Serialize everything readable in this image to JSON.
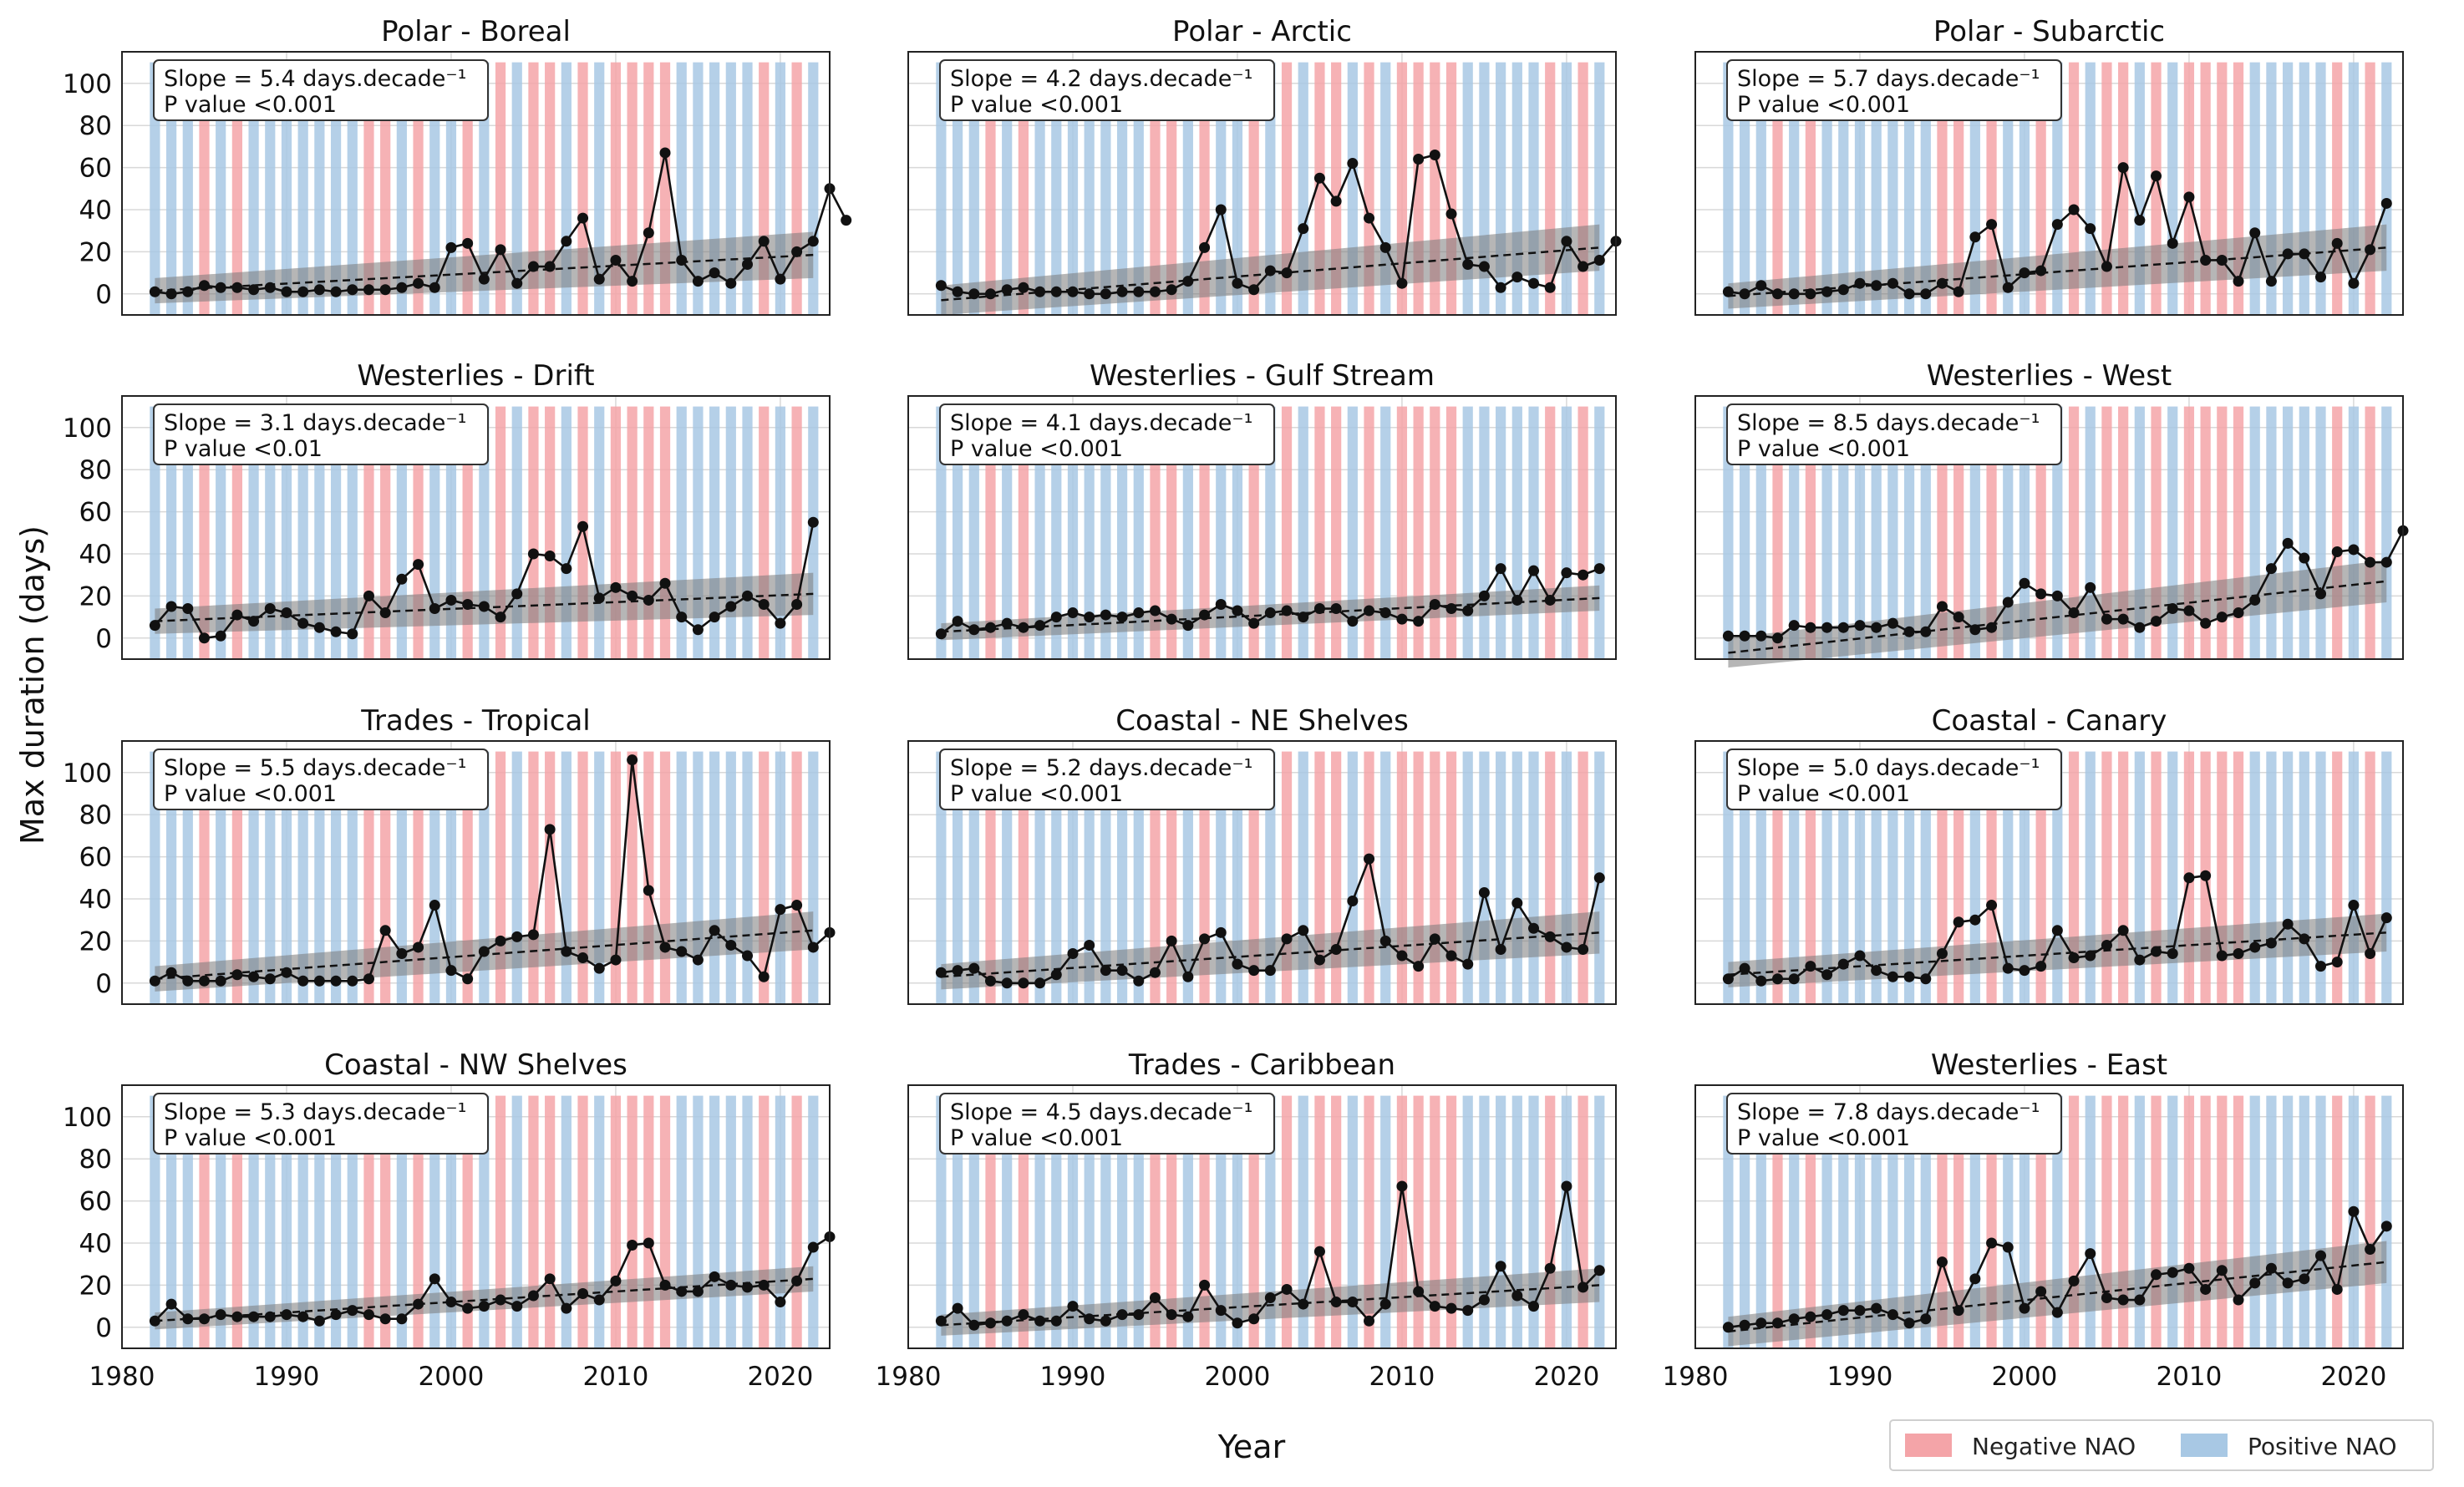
{
  "colors": {
    "negative_nao": "#f4a4a8",
    "positive_nao": "#a8c8e4",
    "series": "#111111",
    "trend_band": "#7a7a7a",
    "trend_line": "#111111",
    "grid": "#d8d8d8"
  },
  "chart_data": {
    "type": "line",
    "ylabel": "Max duration (days)",
    "xlabel": "Year",
    "xlim": [
      1980,
      2023
    ],
    "ylim": [
      -10,
      115
    ],
    "xticks": [
      1980,
      1990,
      2000,
      2010,
      2020
    ],
    "yticks": [
      0,
      20,
      40,
      60,
      80,
      100
    ],
    "grid": true,
    "legend": {
      "placement": "bottom-right",
      "entries": [
        {
          "label": "Negative NAO",
          "color": "#f4a4a8"
        },
        {
          "label": "Positive NAO",
          "color": "#a8c8e4"
        }
      ]
    },
    "nao_background": {
      "years": [
        1982,
        1983,
        1984,
        1985,
        1986,
        1987,
        1988,
        1989,
        1990,
        1991,
        1992,
        1993,
        1994,
        1995,
        1996,
        1997,
        1998,
        1999,
        2000,
        2001,
        2002,
        2003,
        2004,
        2005,
        2006,
        2007,
        2008,
        2009,
        2010,
        2011,
        2012,
        2013,
        2014,
        2015,
        2016,
        2017,
        2018,
        2019,
        2020,
        2021,
        2022
      ],
      "negative_years": [
        1985,
        1987,
        1995,
        1996,
        1998,
        2001,
        2003,
        2005,
        2006,
        2008,
        2010,
        2011,
        2012,
        2013,
        2019,
        2021
      ],
      "bar_top": 110,
      "bar_bottom": -10
    },
    "panels": [
      {
        "title": "Polar - Boreal",
        "slope_text": "Slope = 5.4 days.decade⁻¹",
        "p_text": "P value  <0.001",
        "values": [
          1,
          0,
          1,
          4,
          3,
          3,
          2,
          3,
          1,
          1,
          2,
          1,
          2,
          2,
          2,
          3,
          5,
          3,
          22,
          24,
          7,
          21,
          5,
          13,
          13,
          25,
          36,
          7,
          16,
          6,
          29,
          67,
          16,
          6,
          10,
          5,
          14,
          25,
          7,
          20,
          25,
          50,
          35
        ],
        "trend": [
          1.5,
          18.5
        ],
        "band": [
          6,
          11
        ]
      },
      {
        "title": "Polar - Arctic",
        "slope_text": "Slope = 4.2 days.decade⁻¹",
        "p_text": "P value  <0.001",
        "values": [
          4,
          1,
          0,
          0,
          2,
          3,
          1,
          1,
          1,
          0,
          0,
          1,
          1,
          1,
          2,
          6,
          22,
          40,
          5,
          2,
          11,
          10,
          31,
          55,
          44,
          62,
          36,
          22,
          5,
          64,
          66,
          38,
          14,
          13,
          3,
          8,
          5,
          3,
          25,
          13,
          16,
          25
        ],
        "trend": [
          -3,
          22
        ],
        "band": [
          7,
          11
        ]
      },
      {
        "title": "Polar - Subarctic",
        "slope_text": "Slope = 5.7 days.decade⁻¹",
        "p_text": "P value  <0.001",
        "values": [
          1,
          0,
          4,
          0,
          0,
          0,
          1,
          2,
          5,
          4,
          5,
          0,
          0,
          5,
          1,
          27,
          33,
          3,
          10,
          11,
          33,
          40,
          31,
          13,
          60,
          35,
          56,
          24,
          46,
          16,
          16,
          6,
          29,
          6,
          19,
          19,
          8,
          24,
          5,
          21,
          43
        ],
        "trend": [
          -1,
          22
        ],
        "band": [
          6,
          11
        ]
      },
      {
        "title": "Westerlies - Drift",
        "slope_text": "Slope = 3.1 days.decade⁻¹",
        "p_text": "P value  <0.01",
        "values": [
          6,
          15,
          14,
          0,
          1,
          11,
          8,
          14,
          12,
          7,
          5,
          3,
          2,
          20,
          12,
          28,
          35,
          14,
          18,
          16,
          15,
          10,
          21,
          40,
          39,
          33,
          53,
          19,
          24,
          20,
          18,
          26,
          10,
          4,
          10,
          15,
          20,
          16,
          7,
          16,
          55
        ],
        "trend": [
          8,
          21
        ],
        "band": [
          6,
          10
        ]
      },
      {
        "title": "Westerlies - Gulf Stream",
        "slope_text": "Slope = 4.1 days.decade⁻¹",
        "p_text": "P value  <0.001",
        "values": [
          2,
          8,
          4,
          5,
          7,
          5,
          6,
          10,
          12,
          10,
          11,
          10,
          12,
          13,
          9,
          6,
          11,
          16,
          13,
          7,
          12,
          13,
          10,
          14,
          14,
          8,
          13,
          12,
          9,
          8,
          16,
          14,
          13,
          20,
          33,
          18,
          32,
          18,
          31,
          30,
          33
        ],
        "trend": [
          3,
          19
        ],
        "band": [
          4,
          6
        ]
      },
      {
        "title": "Westerlies - West",
        "slope_text": "Slope = 8.5 days.decade⁻¹",
        "p_text": "P value  <0.001",
        "values": [
          1,
          1,
          1,
          0,
          6,
          5,
          5,
          5,
          6,
          5,
          7,
          3,
          3,
          15,
          10,
          4,
          5,
          17,
          26,
          21,
          20,
          12,
          24,
          9,
          9,
          5,
          8,
          14,
          13,
          7,
          10,
          12,
          18,
          33,
          45,
          38,
          21,
          41,
          42,
          36,
          36,
          51
        ],
        "trend": [
          -7,
          27
        ],
        "band": [
          7,
          10
        ]
      },
      {
        "title": "Trades - Tropical",
        "slope_text": "Slope = 5.5 days.decade⁻¹",
        "p_text": "P value  <0.001",
        "values": [
          1,
          5,
          1,
          1,
          1,
          4,
          3,
          2,
          5,
          1,
          1,
          1,
          1,
          2,
          25,
          14,
          17,
          37,
          6,
          2,
          15,
          20,
          22,
          23,
          73,
          15,
          12,
          7,
          11,
          106,
          44,
          17,
          15,
          11,
          25,
          18,
          13,
          3,
          35,
          37,
          17,
          24
        ],
        "trend": [
          2,
          25
        ],
        "band": [
          6,
          9
        ]
      },
      {
        "title": "Coastal - NE Shelves",
        "slope_text": "Slope = 5.2 days.decade⁻¹",
        "p_text": "P value  <0.001",
        "values": [
          5,
          6,
          7,
          1,
          0,
          0,
          0,
          4,
          14,
          18,
          6,
          6,
          1,
          5,
          20,
          3,
          21,
          24,
          9,
          6,
          6,
          21,
          25,
          11,
          16,
          39,
          59,
          20,
          13,
          8,
          21,
          13,
          9,
          43,
          16,
          38,
          26,
          22,
          17,
          16,
          50
        ],
        "trend": [
          3,
          24
        ],
        "band": [
          6,
          10
        ]
      },
      {
        "title": "Coastal - Canary",
        "slope_text": "Slope = 5.0 days.decade⁻¹",
        "p_text": "P value  <0.001",
        "values": [
          2,
          7,
          1,
          2,
          2,
          8,
          4,
          9,
          13,
          6,
          3,
          3,
          2,
          14,
          29,
          30,
          37,
          7,
          6,
          8,
          25,
          12,
          13,
          18,
          25,
          11,
          15,
          14,
          50,
          51,
          13,
          14,
          17,
          19,
          28,
          21,
          8,
          10,
          37,
          14,
          31
        ],
        "trend": [
          4,
          24
        ],
        "band": [
          6,
          9
        ]
      },
      {
        "title": "Coastal - NW Shelves",
        "slope_text": "Slope = 5.3 days.decade⁻¹",
        "p_text": "P value  <0.001",
        "values": [
          3,
          11,
          4,
          4,
          6,
          5,
          5,
          5,
          6,
          5,
          3,
          6,
          8,
          6,
          4,
          4,
          11,
          23,
          12,
          9,
          10,
          13,
          10,
          15,
          23,
          9,
          16,
          13,
          22,
          39,
          40,
          20,
          17,
          17,
          24,
          20,
          19,
          20,
          12,
          22,
          38,
          43
        ],
        "trend": [
          3,
          23
        ],
        "band": [
          4,
          6
        ]
      },
      {
        "title": "Trades - Caribbean",
        "slope_text": "Slope = 4.5 days.decade⁻¹",
        "p_text": "P value  <0.001",
        "values": [
          3,
          9,
          1,
          2,
          3,
          6,
          3,
          3,
          10,
          4,
          3,
          6,
          6,
          14,
          6,
          5,
          20,
          8,
          2,
          4,
          14,
          18,
          11,
          36,
          12,
          12,
          3,
          11,
          67,
          17,
          10,
          9,
          8,
          13,
          29,
          15,
          10,
          28,
          67,
          19,
          27
        ],
        "trend": [
          1,
          20
        ],
        "band": [
          5,
          8
        ]
      },
      {
        "title": "Westerlies - East",
        "slope_text": "Slope = 7.8 days.decade⁻¹",
        "p_text": "P value  <0.001",
        "values": [
          0,
          1,
          2,
          2,
          4,
          5,
          6,
          8,
          8,
          9,
          6,
          2,
          4,
          31,
          8,
          23,
          40,
          38,
          9,
          17,
          7,
          22,
          35,
          14,
          13,
          13,
          25,
          26,
          28,
          18,
          27,
          13,
          21,
          28,
          21,
          23,
          34,
          18,
          55,
          37,
          48
        ],
        "trend": [
          -2,
          31
        ],
        "band": [
          7,
          10
        ]
      }
    ]
  }
}
